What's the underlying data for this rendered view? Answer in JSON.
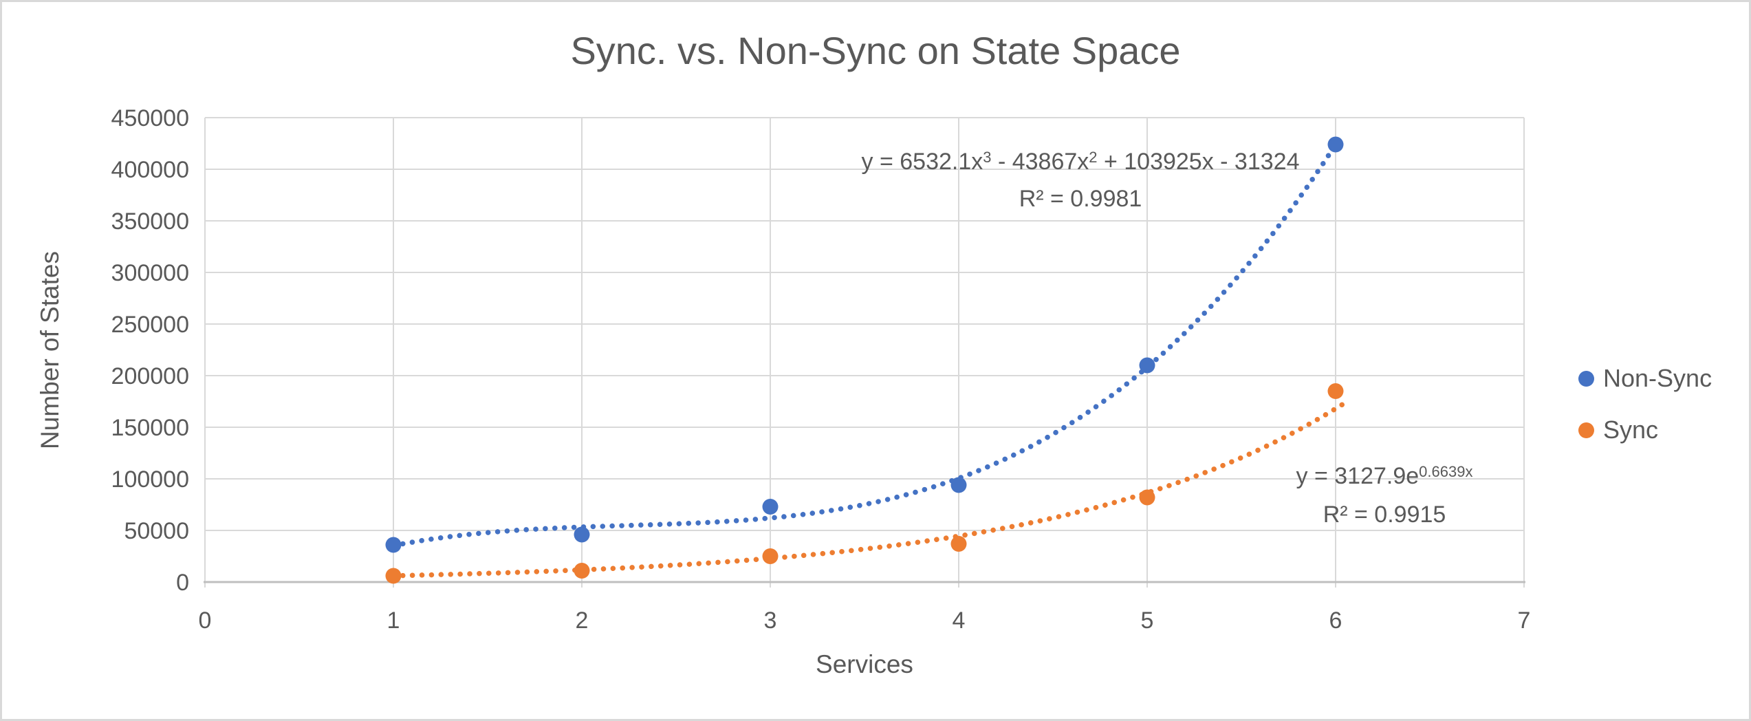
{
  "chart_data": {
    "type": "scatter",
    "title": "Sync. vs. Non-Sync on State Space",
    "xlabel": "Services",
    "ylabel": "Number of States",
    "xlim": [
      0,
      7
    ],
    "ylim": [
      0,
      450000
    ],
    "x_ticks": [
      0,
      1,
      2,
      3,
      4,
      5,
      6,
      7
    ],
    "y_ticks": [
      0,
      50000,
      100000,
      150000,
      200000,
      250000,
      300000,
      350000,
      400000,
      450000
    ],
    "grid": true,
    "legend_position": "right",
    "marker_style": "filled-circle",
    "trendline_style": "dotted",
    "series": [
      {
        "name": "Non-Sync",
        "color": "#4472C4",
        "x": [
          1,
          2,
          3,
          4,
          5,
          6
        ],
        "y": [
          36000,
          46000,
          73000,
          94000,
          210000,
          424000
        ],
        "trendline": {
          "type": "polynomial",
          "order": 3,
          "coefficients": [
            6532.1,
            -43867,
            103925,
            -31324
          ],
          "equation": "y = 6532.1x³ - 43867x² + 103925x - 31324",
          "r_squared": 0.9981
        }
      },
      {
        "name": "Sync",
        "color": "#ED7D31",
        "x": [
          1,
          2,
          3,
          4,
          5,
          6
        ],
        "y": [
          6000,
          11000,
          25000,
          37000,
          82000,
          185000
        ],
        "trendline": {
          "type": "exponential",
          "coefficients": [
            3127.9,
            0.6639
          ],
          "equation": "y = 3127.9e^(0.6639x)",
          "r_squared": 0.9915
        }
      }
    ],
    "annotations": {
      "eq_nonsync": {
        "p1": "y = 6532.1x",
        "s1": "3",
        "p2": " - 43867x",
        "s2": "2",
        "p3": " + 103925x - 31324",
        "r2": "R² = 0.9981"
      },
      "eq_sync": {
        "p1": "y = 3127.9e",
        "s1": "0.6639x",
        "r2": "R² = 0.9915"
      }
    },
    "colors": {
      "text": "#595959",
      "gridline": "#D9D9D9",
      "axis": "#BFBFBF",
      "background": "#FFFFFF",
      "border": "#D9D9D9"
    }
  }
}
